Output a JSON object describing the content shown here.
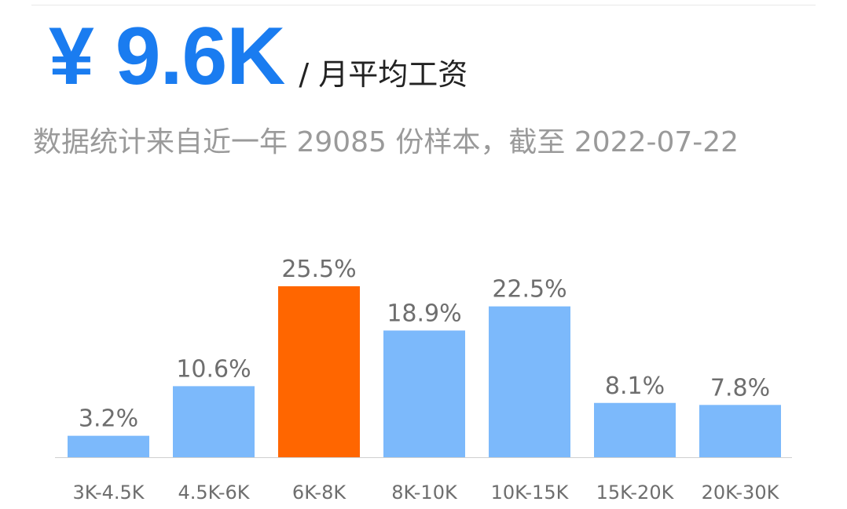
{
  "header": {
    "value": "¥ 9.6K",
    "suffix": "/ 月平均工资",
    "subtitle": "数据统计来自近一年 29085 份样本，截至 2022-07-22"
  },
  "colors": {
    "accent": "#1a7cf0",
    "bar": "#7cb9fb",
    "highlight": "#ff6600",
    "label": "#6e6e6e",
    "axis": "#d0d0d0"
  },
  "chart_data": {
    "type": "bar",
    "categories": [
      "3K-4.5K",
      "4.5K-6K",
      "6K-8K",
      "8K-10K",
      "10K-15K",
      "15K-20K",
      "20K-30K"
    ],
    "values": [
      3.2,
      10.6,
      25.5,
      18.9,
      22.5,
      8.1,
      7.8
    ],
    "value_labels": [
      "3.2%",
      "10.6%",
      "25.5%",
      "18.9%",
      "22.5%",
      "8.1%",
      "7.8%"
    ],
    "highlight_index": 2,
    "title": "",
    "xlabel": "",
    "ylabel": "",
    "ylim": [
      0,
      25.5
    ],
    "grid": false,
    "legend": "none"
  }
}
